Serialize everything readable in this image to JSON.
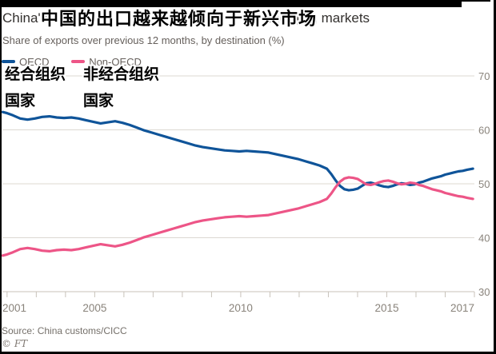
{
  "header": {
    "title_left": "China's",
    "title_right": "emerging markets",
    "title_overlay_zh": "中国的出口越来越倾向于新兴市场",
    "subtitle": "Share of exports over previous 12 months, by destination (%)"
  },
  "legend": {
    "oecd_label": "OECD",
    "non_oecd_label": "Non-OECD",
    "oecd_overlay_zh": "经合组织\n国家",
    "non_oecd_overlay_zh": "非经合组织\n国家"
  },
  "footer": {
    "source": "Source: China customs/CICC",
    "copyright": "© FT"
  },
  "colors": {
    "oecd_line": "#0f5499",
    "non_oecd_line": "#ed5587",
    "gridline": "#dcd8d2",
    "axis": "#c8c2ba",
    "axis_text": "#89837b"
  },
  "chart_data": {
    "type": "line",
    "title": "Share of exports over previous 12 months, by destination (%)",
    "xlabel": "",
    "ylabel": "%",
    "ylim": [
      30,
      70
    ],
    "yticks": [
      30,
      40,
      50,
      60,
      70
    ],
    "grid": true,
    "legend_position": "top-left",
    "x_range": [
      2001.84,
      2018.0
    ],
    "x_minor_ticks": [
      2002,
      2003,
      2004,
      2005,
      2006,
      2007,
      2008,
      2009,
      2010,
      2011,
      2012,
      2013,
      2014,
      2015,
      2016,
      2017,
      2018
    ],
    "x_axis_labels": [
      {
        "text": "2001",
        "t": 2001.84,
        "anchor": "start"
      },
      {
        "text": "2005",
        "t": 2005.0,
        "anchor": "middle"
      },
      {
        "text": "2010",
        "t": 2010.0,
        "anchor": "middle"
      },
      {
        "text": "2015",
        "t": 2015.0,
        "anchor": "middle"
      },
      {
        "text": "2017",
        "t": 2018.0,
        "anchor": "end"
      }
    ],
    "x": [
      2001.85,
      2002.0,
      2002.2,
      2002.45,
      2002.7,
      2002.95,
      2003.2,
      2003.45,
      2003.7,
      2003.95,
      2004.2,
      2004.45,
      2004.7,
      2004.95,
      2005.2,
      2005.45,
      2005.7,
      2005.95,
      2006.2,
      2006.45,
      2006.7,
      2006.95,
      2007.2,
      2007.45,
      2007.7,
      2007.95,
      2008.2,
      2008.45,
      2008.7,
      2008.95,
      2009.2,
      2009.45,
      2009.7,
      2009.95,
      2010.2,
      2010.45,
      2010.7,
      2010.95,
      2011.2,
      2011.45,
      2011.7,
      2011.95,
      2012.2,
      2012.45,
      2012.7,
      2012.95,
      2013.1,
      2013.25,
      2013.4,
      2013.55,
      2013.7,
      2013.85,
      2014.0,
      2014.15,
      2014.3,
      2014.45,
      2014.6,
      2014.75,
      2014.9,
      2015.05,
      2015.2,
      2015.35,
      2015.5,
      2015.65,
      2015.8,
      2015.95,
      2016.1,
      2016.25,
      2016.4,
      2016.55,
      2016.7,
      2016.85,
      2017.0,
      2017.15,
      2017.3,
      2017.45,
      2017.6,
      2017.75,
      2017.95
    ],
    "series": [
      {
        "name": "OECD",
        "color": "#0f5499",
        "values": [
          63.3,
          63.1,
          62.7,
          62.1,
          61.9,
          62.1,
          62.4,
          62.5,
          62.3,
          62.2,
          62.3,
          62.1,
          61.8,
          61.5,
          61.2,
          61.4,
          61.6,
          61.3,
          60.9,
          60.4,
          59.9,
          59.5,
          59.1,
          58.7,
          58.3,
          57.9,
          57.5,
          57.1,
          56.8,
          56.6,
          56.4,
          56.2,
          56.1,
          56.0,
          56.1,
          56.0,
          55.9,
          55.8,
          55.5,
          55.2,
          54.9,
          54.6,
          54.2,
          53.8,
          53.4,
          52.8,
          51.8,
          50.6,
          49.6,
          49.0,
          48.8,
          48.9,
          49.1,
          49.6,
          50.1,
          50.2,
          50.0,
          49.7,
          49.5,
          49.4,
          49.6,
          49.9,
          50.1,
          50.0,
          49.8,
          49.9,
          50.2,
          50.4,
          50.7,
          51.0,
          51.2,
          51.4,
          51.7,
          51.9,
          52.1,
          52.3,
          52.4,
          52.6,
          52.8
        ]
      },
      {
        "name": "Non-OECD",
        "color": "#ed5587",
        "values": [
          36.7,
          36.9,
          37.3,
          37.9,
          38.1,
          37.9,
          37.6,
          37.5,
          37.7,
          37.8,
          37.7,
          37.9,
          38.2,
          38.5,
          38.8,
          38.6,
          38.4,
          38.7,
          39.1,
          39.6,
          40.1,
          40.5,
          40.9,
          41.3,
          41.7,
          42.1,
          42.5,
          42.9,
          43.2,
          43.4,
          43.6,
          43.8,
          43.9,
          44.0,
          43.9,
          44.0,
          44.1,
          44.2,
          44.5,
          44.8,
          45.1,
          45.4,
          45.8,
          46.2,
          46.6,
          47.2,
          48.2,
          49.4,
          50.4,
          51.0,
          51.2,
          51.1,
          50.9,
          50.4,
          49.9,
          49.8,
          50.0,
          50.3,
          50.5,
          50.6,
          50.4,
          50.1,
          49.9,
          50.0,
          50.2,
          50.1,
          49.8,
          49.6,
          49.3,
          49.0,
          48.8,
          48.6,
          48.3,
          48.1,
          47.9,
          47.7,
          47.6,
          47.4,
          47.2
        ]
      }
    ]
  }
}
